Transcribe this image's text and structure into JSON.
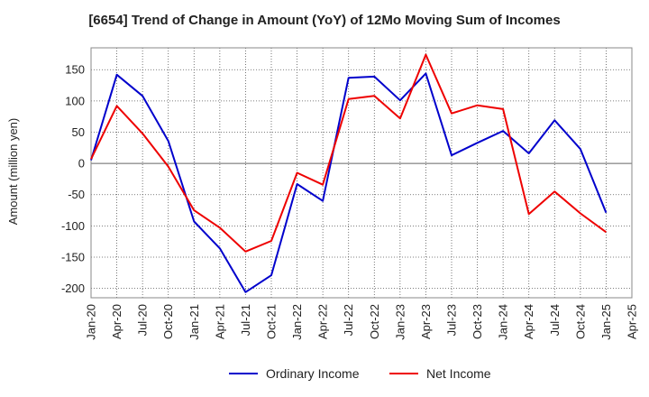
{
  "chart_data": {
    "type": "line",
    "title": "[6654]  Trend of Change in Amount (YoY) of 12Mo Moving Sum of Incomes",
    "xlabel": "",
    "ylabel": "Amount (million yen)",
    "x_ticks": [
      "Jan-20",
      "Apr-20",
      "Jul-20",
      "Oct-20",
      "Jan-21",
      "Apr-21",
      "Jul-21",
      "Oct-21",
      "Jan-22",
      "Apr-22",
      "Jul-22",
      "Oct-22",
      "Jan-23",
      "Apr-23",
      "Jul-23",
      "Oct-23",
      "Jan-24",
      "Apr-24",
      "Jul-24",
      "Oct-24",
      "Jan-25",
      "Apr-25"
    ],
    "y_ticks": [
      -200,
      -150,
      -100,
      -50,
      0,
      50,
      100,
      150
    ],
    "ylim": [
      -215,
      185
    ],
    "grid": true,
    "legend_position": "bottom",
    "series": [
      {
        "name": "Ordinary Income",
        "color": "#0000cc",
        "x": [
          "Jan-20",
          "Apr-20",
          "Jul-20",
          "Oct-20",
          "Jan-21",
          "Apr-21",
          "Jul-21",
          "Oct-21",
          "Jan-22",
          "Apr-22",
          "Jul-22",
          "Oct-22",
          "Jan-23",
          "Apr-23",
          "Jul-23",
          "Oct-23",
          "Jan-24",
          "Apr-24",
          "Jul-24",
          "Oct-24",
          "Jan-25"
        ],
        "values": [
          5,
          142,
          108,
          36,
          -93,
          -136,
          -206,
          -179,
          -33,
          -60,
          137,
          139,
          101,
          144,
          13,
          33,
          52,
          16,
          69,
          23,
          -79
        ]
      },
      {
        "name": "Net Income",
        "color": "#ee0000",
        "x": [
          "Jan-20",
          "Apr-20",
          "Jul-20",
          "Oct-20",
          "Jan-21",
          "Apr-21",
          "Jul-21",
          "Oct-21",
          "Jan-22",
          "Apr-22",
          "Jul-22",
          "Oct-22",
          "Jan-23",
          "Apr-23",
          "Jul-23",
          "Oct-23",
          "Jan-24",
          "Apr-24",
          "Jul-24",
          "Oct-24",
          "Jan-25"
        ],
        "values": [
          7,
          92,
          48,
          -5,
          -75,
          -103,
          -141,
          -124,
          -15,
          -34,
          103,
          108,
          72,
          174,
          80,
          93,
          87,
          -81,
          -45,
          -80,
          -110
        ]
      }
    ]
  }
}
